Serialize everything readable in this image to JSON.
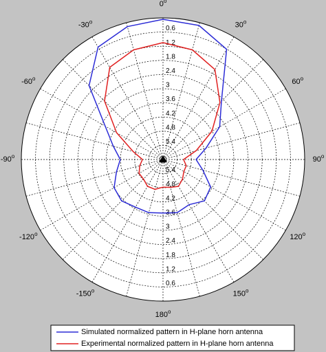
{
  "chart_data": {
    "type": "polar",
    "theta_zero": "top",
    "theta_direction": "clockwise",
    "degree_symbol": "o",
    "x": [
      -180,
      -165,
      -150,
      -135,
      -120,
      -105,
      -90,
      -75,
      -60,
      -45,
      -30,
      -15,
      0,
      15,
      30,
      45,
      60,
      75,
      90,
      105,
      120,
      135,
      150,
      165,
      180
    ],
    "series": [
      {
        "name": "Simulated normalized pattern in H-plane horn antenna",
        "color": "#2b2bd6",
        "values": [
          3.73,
          3.67,
          3.67,
          3.52,
          3.61,
          3.96,
          4.19,
          3.82,
          3.17,
          1.57,
          0.5,
          0.17,
          0.06,
          0.12,
          0.61,
          2.5,
          3.23,
          4.11,
          4.6,
          4.25,
          3.67,
          3.52,
          3.79,
          3.67,
          3.73
        ]
      },
      {
        "name": "Experimental normalized pattern in H-plane horn antenna",
        "color": "#e02020",
        "values": [
          4.83,
          4.69,
          4.69,
          4.83,
          4.83,
          4.98,
          5.13,
          4.69,
          3.73,
          2.5,
          1.49,
          1.19,
          1.05,
          1.19,
          1.6,
          2.59,
          3.61,
          4.54,
          5.13,
          4.98,
          4.98,
          4.83,
          4.69,
          4.78,
          4.83
        ]
      }
    ],
    "rlim": [
      6,
      0
    ],
    "rticks": [
      0.6,
      1.2,
      1.8,
      2.4,
      3,
      3.6,
      4.2,
      4.8,
      5.4
    ],
    "thetaticks": [
      0,
      30,
      60,
      90,
      120,
      150,
      180,
      -150,
      -120,
      -90,
      -60,
      -30
    ],
    "thetagrid": [
      0,
      15,
      30,
      45,
      60,
      75,
      90,
      105,
      120,
      135,
      150,
      165,
      180,
      195,
      210,
      225,
      240,
      255,
      270,
      285,
      300,
      315,
      330,
      345
    ],
    "grid": true,
    "legend": "bottom"
  }
}
